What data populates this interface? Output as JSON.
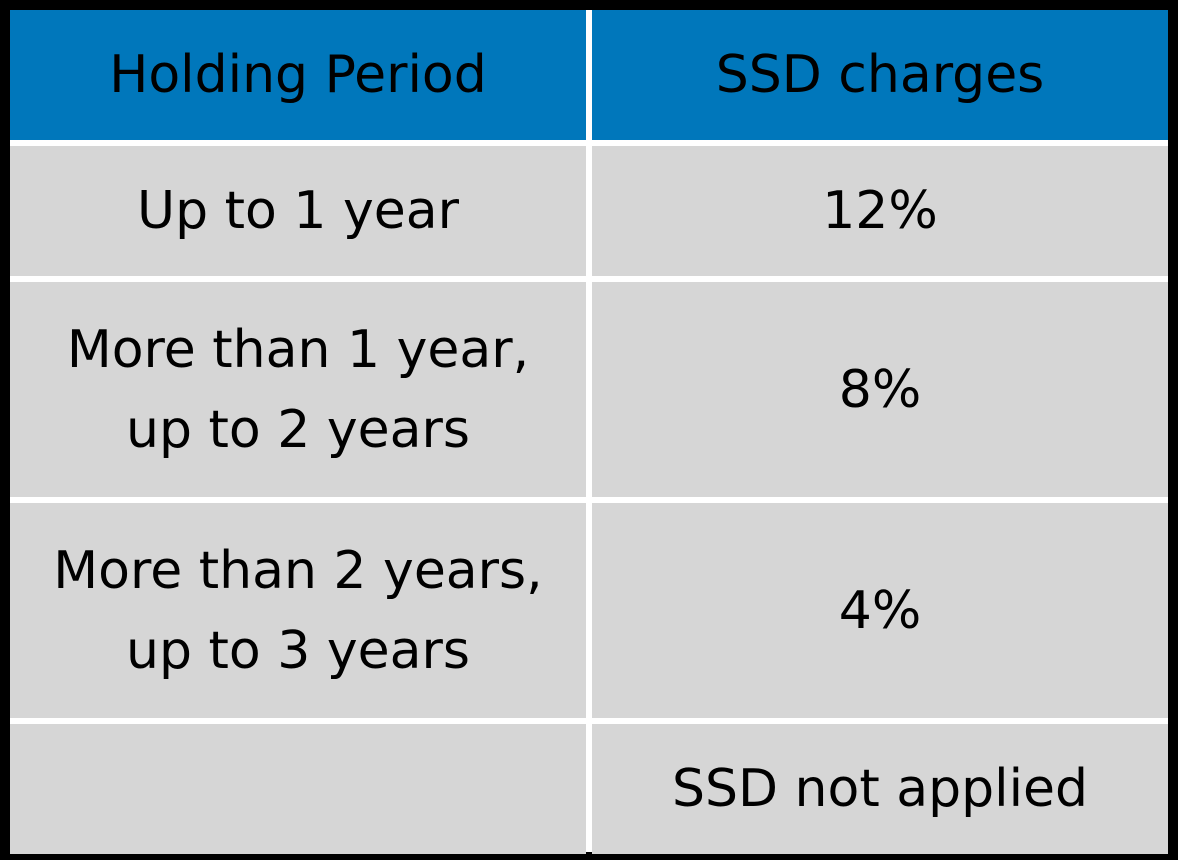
{
  "table": {
    "headers": [
      "Holding Period",
      "SSD charges"
    ],
    "rows": [
      [
        "Up to 1 year",
        "12%"
      ],
      [
        "More than 1 year,\nup to 2 years",
        "8%"
      ],
      [
        "More than 2 years,\nup to 3 years",
        "4%"
      ],
      [
        "",
        "SSD not applied"
      ]
    ]
  },
  "colors": {
    "header_bg": "#0077bb",
    "row_bg": "#d6d6d6",
    "border": "#000000"
  }
}
